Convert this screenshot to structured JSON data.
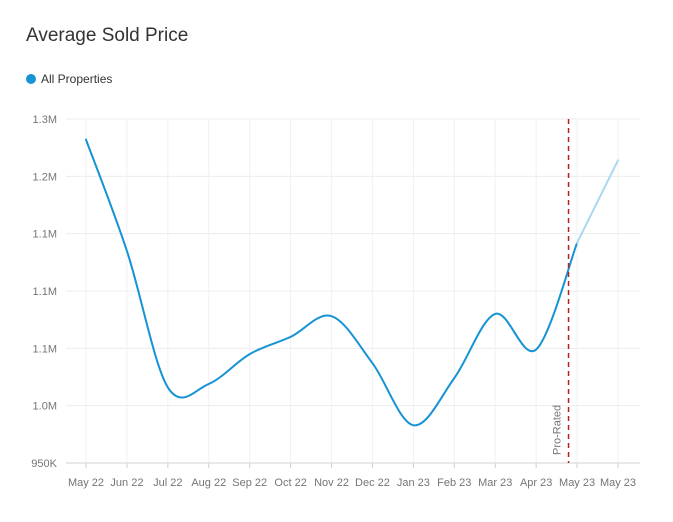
{
  "chart_data": {
    "type": "line",
    "title": "Average Sold Price",
    "xlabel": "",
    "ylabel": "",
    "categories": [
      "May 22",
      "Jun 22",
      "Jul 22",
      "Aug 22",
      "Sep 22",
      "Oct 22",
      "Nov 22",
      "Dec 22",
      "Jan 23",
      "Feb 23",
      "Mar 23",
      "Apr 23",
      "May 23",
      "May 23"
    ],
    "y_tick_labels": [
      "950K",
      "1.0M",
      "1.1M",
      "1.1M",
      "1.1M",
      "1.2M",
      "1.3M"
    ],
    "ylim": [
      950000,
      1250000
    ],
    "series": [
      {
        "name": "All Properties",
        "color": "#1593d4",
        "projected_color": "#a8d8f2",
        "values": [
          1232000,
          1135000,
          1016000,
          1019000,
          1045000,
          1060000,
          1078000,
          1037000,
          983000,
          1024000,
          1080000,
          1049000,
          1142000,
          1214000
        ],
        "projected_from_index": 12
      }
    ],
    "annotation": {
      "label": "Pro-Rated",
      "color": "#b22222",
      "x_position": "latest month"
    },
    "grid": true,
    "legend_position": "top-left"
  }
}
